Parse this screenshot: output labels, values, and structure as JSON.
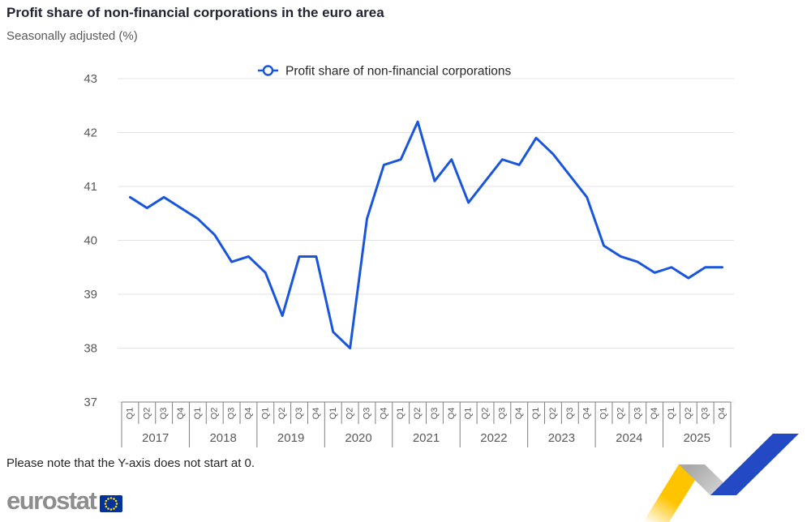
{
  "header": {
    "title": "Profit share of non-financial corporations in the euro area",
    "subtitle": "Seasonally adjusted (%)"
  },
  "legend": {
    "label": "Profit share of non-financial corporations"
  },
  "footer": {
    "note": "Please note that the Y-axis does not start at 0.",
    "logo_text": "eurostat"
  },
  "colors": {
    "line": "#1A56DB",
    "grid": "#E3E3E6",
    "axis": "#7F7F7F",
    "tick_label": "#595959",
    "title_text": "#1F2430",
    "legend_text": "#262626",
    "logo_gray": "#8D8D8D",
    "eu_blue": "#003399",
    "star_yellow": "#FFD617",
    "deco_yellow": "#FFC400",
    "deco_gray_dark": "#A8A8A8",
    "deco_gray_light": "#D6D6D6",
    "deco_blue": "#2449C4"
  },
  "chart_data": {
    "type": "line",
    "title": "Profit share of non-financial corporations in the euro area",
    "subtitle": "Seasonally adjusted (%)",
    "legend": [
      "Profit share of non-financial corporations"
    ],
    "legend_position": "top",
    "grid": true,
    "ylabel": "",
    "xlabel": "",
    "ylim": [
      37,
      43
    ],
    "yticks": [
      37,
      38,
      39,
      40,
      41,
      42,
      43
    ],
    "years": [
      "2017",
      "2018",
      "2019",
      "2020",
      "2021",
      "2022",
      "2023",
      "2024",
      "2025"
    ],
    "quarter_labels": [
      "Q1",
      "Q2",
      "Q3",
      "Q4"
    ],
    "categories": [
      "2017-Q1",
      "2017-Q2",
      "2017-Q3",
      "2017-Q4",
      "2018-Q1",
      "2018-Q2",
      "2018-Q3",
      "2018-Q4",
      "2019-Q1",
      "2019-Q2",
      "2019-Q3",
      "2019-Q4",
      "2020-Q1",
      "2020-Q2",
      "2020-Q3",
      "2020-Q4",
      "2021-Q1",
      "2021-Q2",
      "2021-Q3",
      "2021-Q4",
      "2022-Q1",
      "2022-Q2",
      "2022-Q3",
      "2022-Q4",
      "2023-Q1",
      "2023-Q2",
      "2023-Q3",
      "2023-Q4",
      "2024-Q1",
      "2024-Q2",
      "2024-Q3",
      "2024-Q4",
      "2025-Q1",
      "2025-Q2",
      "2025-Q3",
      "2025-Q4"
    ],
    "values": [
      40.8,
      40.6,
      40.8,
      40.6,
      40.4,
      40.1,
      39.6,
      39.7,
      39.4,
      38.6,
      39.7,
      39.7,
      38.3,
      38.0,
      40.4,
      41.4,
      41.5,
      42.2,
      41.1,
      41.5,
      40.7,
      41.1,
      41.5,
      41.4,
      41.9,
      41.6,
      41.2,
      40.8,
      39.9,
      39.7,
      39.6,
      39.4,
      39.5,
      39.3,
      39.5,
      39.5
    ]
  }
}
